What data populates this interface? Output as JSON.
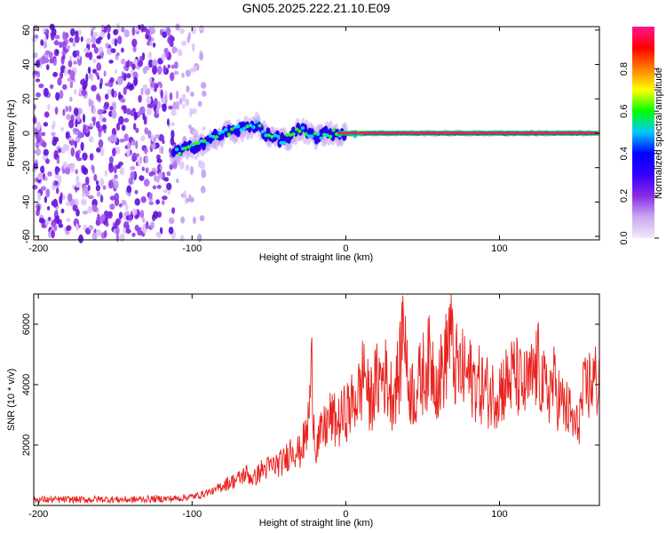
{
  "title": "GN05.2025.222.21.10.E09",
  "chart_data": [
    {
      "type": "heatmap",
      "name": "spectrogram",
      "xlabel": "Height of straight line (km)",
      "ylabel": "Frequency (Hz)",
      "xlim": [
        -203,
        165
      ],
      "ylim": [
        -62,
        62
      ],
      "x_ticks": [
        "-200",
        "-100",
        "0",
        "100"
      ],
      "x_tick_values": [
        -200,
        -100,
        0,
        100
      ],
      "y_ticks": [
        "60",
        "40",
        "20",
        "0",
        "-20",
        "-40",
        "-60"
      ],
      "y_tick_values": [
        60,
        40,
        20,
        0,
        -20,
        -40,
        -60
      ],
      "noise_region_x": [
        -203,
        -90
      ],
      "signal_trace": [
        {
          "x": -113,
          "f": -12
        },
        {
          "x": -100,
          "f": -8
        },
        {
          "x": -90,
          "f": -4
        },
        {
          "x": -80,
          "f": 0
        },
        {
          "x": -70,
          "f": 2
        },
        {
          "x": -58,
          "f": 5
        },
        {
          "x": -50,
          "f": -2
        },
        {
          "x": -40,
          "f": -4
        },
        {
          "x": -30,
          "f": 2
        },
        {
          "x": -20,
          "f": -2
        },
        {
          "x": -10,
          "f": 0
        },
        {
          "x": 0,
          "f": 0
        },
        {
          "x": 100,
          "f": 0
        },
        {
          "x": 165,
          "f": 0
        }
      ],
      "colorbar": {
        "label": "Normalized spectral amplitude",
        "ticks": [
          "0.0",
          "0.2",
          "0.4",
          "0.6",
          "0.8"
        ],
        "tick_values": [
          0.0,
          0.2,
          0.4,
          0.6,
          0.8
        ],
        "range": [
          0,
          1
        ],
        "colors": [
          "#f2eafc",
          "#c9a7f2",
          "#8a2be2",
          "#3300ff",
          "#0000ff",
          "#00c8ff",
          "#00ff00",
          "#ffff00",
          "#ff8000",
          "#ff0000",
          "#ff1493"
        ]
      }
    },
    {
      "type": "line",
      "name": "snr",
      "xlabel": "Height of straight line (km)",
      "ylabel": "SNR (10 * v/v)",
      "xlim": [
        -203,
        165
      ],
      "ylim": [
        0,
        7000
      ],
      "x_ticks": [
        "-200",
        "-100",
        "0",
        "100"
      ],
      "x_tick_values": [
        -200,
        -100,
        0,
        100
      ],
      "y_ticks": [
        "2000",
        "4000",
        "6000"
      ],
      "y_tick_values": [
        2000,
        4000,
        6000
      ],
      "color": "#e8231e",
      "series": [
        {
          "x": [
            -203,
            -190,
            -180,
            -170,
            -160,
            -150,
            -140,
            -130,
            -120,
            -110,
            -100,
            -95,
            -90,
            -85,
            -80,
            -75,
            -70,
            -65,
            -60,
            -55,
            -50,
            -45,
            -40,
            -35,
            -30,
            -25,
            -22,
            -20,
            -15,
            -10,
            -5,
            0,
            5,
            10,
            12,
            15,
            20,
            25,
            30,
            35,
            38,
            40,
            45,
            50,
            55,
            60,
            65,
            68,
            70,
            75,
            80,
            85,
            90,
            95,
            100,
            105,
            110,
            115,
            120,
            125,
            130,
            135,
            140,
            145,
            150,
            155,
            160,
            165
          ],
          "y": [
            200,
            200,
            210,
            200,
            220,
            210,
            200,
            220,
            230,
            240,
            300,
            350,
            450,
            500,
            700,
            800,
            900,
            1100,
            900,
            1200,
            1300,
            1400,
            1500,
            2000,
            1800,
            2500,
            4700,
            2000,
            2500,
            3000,
            2800,
            3200,
            3500,
            4000,
            4900,
            3500,
            4200,
            4500,
            3800,
            4500,
            6900,
            4200,
            3800,
            4500,
            5000,
            4200,
            5000,
            6200,
            4800,
            4600,
            4400,
            4200,
            4000,
            3800,
            4000,
            4200,
            4500,
            4000,
            4200,
            4800,
            3800,
            4200,
            3500,
            3200,
            2600,
            3800,
            4300,
            4200
          ]
        }
      ]
    }
  ]
}
